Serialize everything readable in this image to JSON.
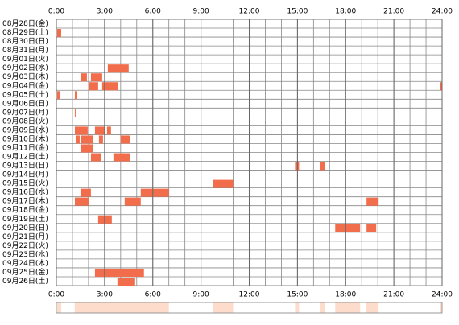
{
  "chart_data": {
    "type": "timeline",
    "xlim": [
      0,
      24
    ],
    "xticks": [
      {
        "value": 0,
        "label": "0:00"
      },
      {
        "value": 3,
        "label": "3:00"
      },
      {
        "value": 6,
        "label": "6:00"
      },
      {
        "value": 9,
        "label": "9:00"
      },
      {
        "value": 12,
        "label": "12:00"
      },
      {
        "value": 15,
        "label": "15:00"
      },
      {
        "value": 18,
        "label": "18:00"
      },
      {
        "value": 21,
        "label": "21:00"
      },
      {
        "value": 24,
        "label": "24:00"
      }
    ],
    "grid_step": 1,
    "color": "#f26d4b",
    "summary_color": "#fddccb",
    "rows": [
      {
        "label": "08月28日(金)",
        "segments": []
      },
      {
        "label": "08月29日(土)",
        "segments": [
          [
            0.05,
            0.3
          ]
        ]
      },
      {
        "label": "08月30日(日)",
        "segments": []
      },
      {
        "label": "08月31日(月)",
        "segments": []
      },
      {
        "label": "09月01日(火)",
        "segments": []
      },
      {
        "label": "09月02日(水)",
        "segments": [
          [
            3.2,
            4.5
          ]
        ]
      },
      {
        "label": "09月03日(木)",
        "segments": [
          [
            1.55,
            1.9
          ],
          [
            2.15,
            2.85
          ]
        ]
      },
      {
        "label": "09月04日(金)",
        "segments": [
          [
            2.05,
            2.6
          ],
          [
            2.85,
            3.85
          ],
          [
            23.9,
            24
          ]
        ]
      },
      {
        "label": "09月05日(土)",
        "segments": [
          [
            0.05,
            0.2
          ],
          [
            1.15,
            1.3
          ]
        ]
      },
      {
        "label": "09月06日(日)",
        "segments": []
      },
      {
        "label": "09月07日(月)",
        "segments": [
          [
            1.15,
            1.2
          ]
        ]
      },
      {
        "label": "09月08日(火)",
        "segments": []
      },
      {
        "label": "09月09日(水)",
        "segments": [
          [
            1.15,
            1.95
          ],
          [
            2.4,
            3.05
          ],
          [
            3.15,
            3.4
          ]
        ]
      },
      {
        "label": "09月10日(木)",
        "segments": [
          [
            1.2,
            1.45
          ],
          [
            1.55,
            2.3
          ],
          [
            2.65,
            2.9
          ],
          [
            4.0,
            4.6
          ]
        ]
      },
      {
        "label": "09月11日(金)",
        "segments": [
          [
            1.55,
            2.3
          ]
        ]
      },
      {
        "label": "09月12日(土)",
        "segments": [
          [
            2.15,
            2.8
          ],
          [
            3.55,
            4.6
          ]
        ]
      },
      {
        "label": "09月13日(日)",
        "segments": [
          [
            14.85,
            15.1
          ],
          [
            16.4,
            16.7
          ]
        ]
      },
      {
        "label": "09月14日(月)",
        "segments": []
      },
      {
        "label": "09月15日(火)",
        "segments": [
          [
            9.75,
            11.0
          ]
        ]
      },
      {
        "label": "09月16日(水)",
        "segments": [
          [
            1.5,
            2.15
          ],
          [
            5.25,
            7.0
          ]
        ]
      },
      {
        "label": "09月17日(木)",
        "segments": [
          [
            1.15,
            2.0
          ],
          [
            4.25,
            5.25
          ],
          [
            19.3,
            20.05
          ]
        ]
      },
      {
        "label": "09月18日(金)",
        "segments": []
      },
      {
        "label": "09月19日(土)",
        "segments": [
          [
            2.6,
            3.45
          ]
        ]
      },
      {
        "label": "09月20日(日)",
        "segments": [
          [
            17.35,
            18.9
          ],
          [
            19.3,
            19.9
          ]
        ]
      },
      {
        "label": "09月21日(月)",
        "segments": []
      },
      {
        "label": "09月22日(火)",
        "segments": []
      },
      {
        "label": "09月23日(水)",
        "segments": []
      },
      {
        "label": "09月24日(木)",
        "segments": []
      },
      {
        "label": "09月25日(金)",
        "segments": [
          [
            2.4,
            5.45
          ]
        ]
      },
      {
        "label": "09月26日(土)",
        "segments": [
          [
            3.8,
            4.9
          ]
        ]
      }
    ]
  }
}
